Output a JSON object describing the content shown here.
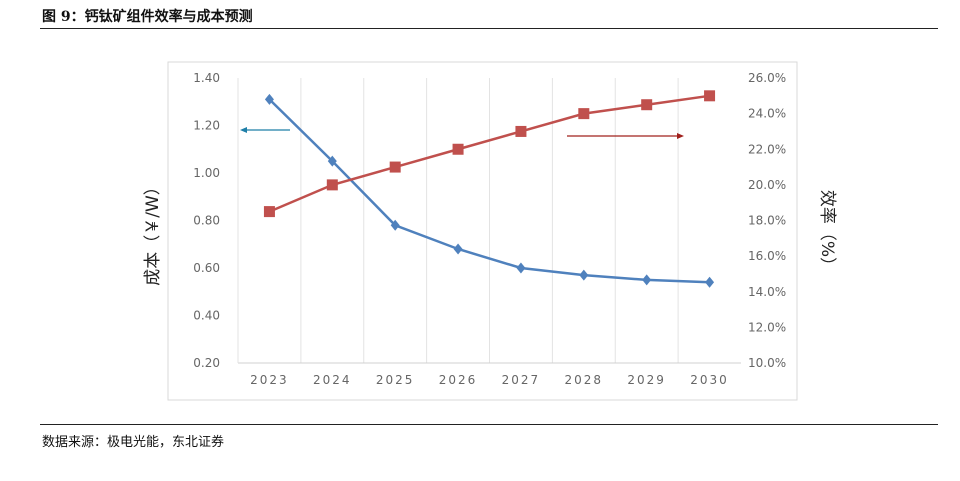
{
  "figure_title": "图 9：钙钛矿组件效率与成本预测",
  "source": "数据来源：极电光能，东北证券",
  "chart_data": {
    "type": "line",
    "categories": [
      "2023",
      "2024",
      "2025",
      "2026",
      "2027",
      "2028",
      "2029",
      "2030"
    ],
    "ylabel": "成本（￥/W）",
    "ylabel_right": "效率（%）",
    "ylim": [
      0.2,
      1.4
    ],
    "yticks": [
      "0.20",
      "0.40",
      "0.60",
      "0.80",
      "1.00",
      "1.20",
      "1.40"
    ],
    "ylim_right": [
      10.0,
      26.0
    ],
    "yticks_right": [
      "10.0%",
      "12.0%",
      "14.0%",
      "16.0%",
      "18.0%",
      "20.0%",
      "22.0%",
      "24.0%",
      "26.0%"
    ],
    "grid": "vertical",
    "series": [
      {
        "axis": "left",
        "marker": "diamond",
        "color": "#4f81bd",
        "values": [
          1.31,
          1.05,
          0.78,
          0.68,
          0.6,
          0.57,
          0.55,
          0.54
        ]
      },
      {
        "axis": "right",
        "marker": "square",
        "color": "#c0504d",
        "values": [
          18.5,
          20.0,
          21.0,
          22.0,
          23.0,
          24.0,
          24.5,
          25.0
        ]
      }
    ],
    "annotations": [
      {
        "type": "arrow",
        "direction": "left",
        "meaning": "left-axis",
        "color": "#1f7fa8"
      },
      {
        "type": "arrow",
        "direction": "right",
        "meaning": "right-axis",
        "color": "#a0201c"
      }
    ]
  }
}
